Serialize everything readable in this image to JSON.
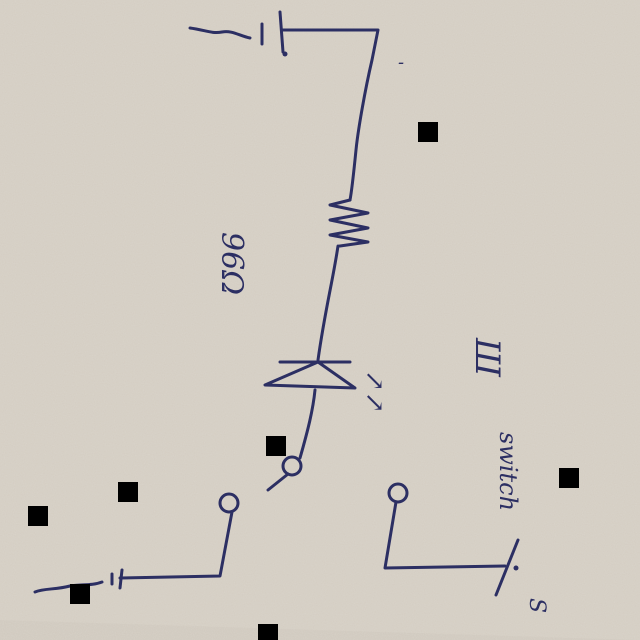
{
  "diagram": {
    "kind": "handwritten circuit sketch (photo, rotated)",
    "ink_color": "#2c2f63",
    "paper_color": "#cfc8bd",
    "labels": {
      "resistor_value": "96Ω",
      "diode_marker": "↗↗",
      "diode_label": "Ш",
      "switch_label": "switch",
      "top_terminal_sign": "-",
      "bottom_terminal_sign": "+",
      "switch_terminal_sign": "S"
    },
    "components": [
      {
        "type": "battery",
        "name": "top-battery"
      },
      {
        "type": "resistor",
        "name": "resistor"
      },
      {
        "type": "diode",
        "name": "led-diode"
      },
      {
        "type": "switch",
        "name": "switch"
      },
      {
        "type": "battery",
        "name": "bottom-battery"
      }
    ]
  }
}
